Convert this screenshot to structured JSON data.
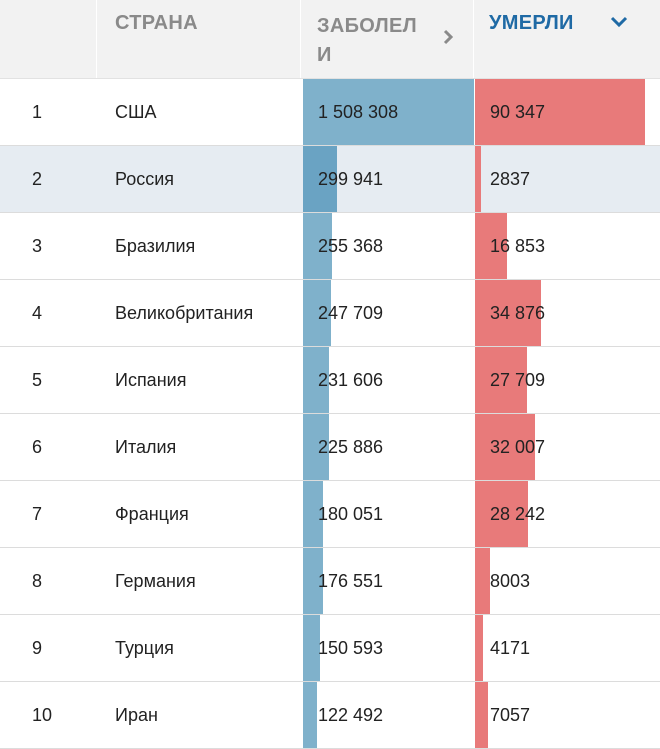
{
  "header": {
    "country": "СТРАНА",
    "cases": "ЗАБОЛЕЛИ",
    "deaths": "УМЕРЛИ"
  },
  "colors": {
    "cases_bar": "#7fb1cb",
    "deaths_bar": "#e87a7a",
    "active_header": "#1f6aa5",
    "highlight_row": "#e6ecf2"
  },
  "rows": [
    {
      "rank": "1",
      "country": "США",
      "cases": "1 508 308",
      "deaths": "90 347",
      "cases_frac": 1.0,
      "deaths_frac": 1.0
    },
    {
      "rank": "2",
      "country": "Россия",
      "cases": "299 941",
      "deaths": "2837",
      "cases_frac": 0.199,
      "deaths_frac": 0.031
    },
    {
      "rank": "3",
      "country": "Бразилия",
      "cases": "255 368",
      "deaths": "16 853",
      "cases_frac": 0.169,
      "deaths_frac": 0.187
    },
    {
      "rank": "4",
      "country": "Великобритания",
      "cases": "247 709",
      "deaths": "34 876",
      "cases_frac": 0.164,
      "deaths_frac": 0.386
    },
    {
      "rank": "5",
      "country": "Испания",
      "cases": "231 606",
      "deaths": "27 709",
      "cases_frac": 0.154,
      "deaths_frac": 0.307
    },
    {
      "rank": "6",
      "country": "Италия",
      "cases": "225 886",
      "deaths": "32 007",
      "cases_frac": 0.15,
      "deaths_frac": 0.354
    },
    {
      "rank": "7",
      "country": "Франция",
      "cases": "180 051",
      "deaths": "28 242",
      "cases_frac": 0.119,
      "deaths_frac": 0.313
    },
    {
      "rank": "8",
      "country": "Германия",
      "cases": "176 551",
      "deaths": "8003",
      "cases_frac": 0.117,
      "deaths_frac": 0.089
    },
    {
      "rank": "9",
      "country": "Турция",
      "cases": "150 593",
      "deaths": "4171",
      "cases_frac": 0.1,
      "deaths_frac": 0.046
    },
    {
      "rank": "10",
      "country": "Иран",
      "cases": "122 492",
      "deaths": "7057",
      "cases_frac": 0.081,
      "deaths_frac": 0.078
    }
  ]
}
